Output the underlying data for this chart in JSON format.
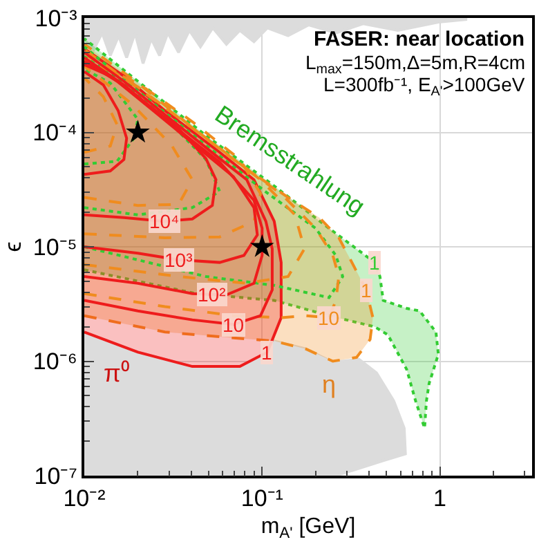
{
  "chart_data": {
    "type": "line",
    "title": "FASER: near location",
    "xlabel": "m$_{A'}$ [GeV]",
    "ylabel": "ϵ",
    "log": "xy",
    "grid": true,
    "xlim": [
      0.01,
      3.3
    ],
    "ylim": [
      1e-07,
      0.001
    ],
    "xticks": [
      {
        "value": 0.01,
        "label": "10⁻²"
      },
      {
        "value": 0.1,
        "label": "10⁻¹"
      },
      {
        "value": 1,
        "label": "1"
      },
      {
        "value": 0.02,
        "label": null
      },
      {
        "value": 0.03,
        "label": null
      },
      {
        "value": 0.04,
        "label": null
      },
      {
        "value": 0.05,
        "label": null
      },
      {
        "value": 0.06,
        "label": null
      },
      {
        "value": 0.07,
        "label": null
      },
      {
        "value": 0.08,
        "label": null
      },
      {
        "value": 0.09,
        "label": null
      },
      {
        "value": 0.2,
        "label": null
      },
      {
        "value": 0.3,
        "label": null
      },
      {
        "value": 0.4,
        "label": null
      },
      {
        "value": 0.5,
        "label": null
      },
      {
        "value": 0.6,
        "label": null
      },
      {
        "value": 0.7,
        "label": null
      },
      {
        "value": 0.8,
        "label": null
      },
      {
        "value": 0.9,
        "label": null
      },
      {
        "value": 2,
        "label": null
      },
      {
        "value": 3,
        "label": null
      }
    ],
    "yticks": [
      {
        "value": 1e-07,
        "label": "10⁻⁷"
      },
      {
        "value": 1e-06,
        "label": "10⁻⁶"
      },
      {
        "value": 1e-05,
        "label": "10⁻⁵"
      },
      {
        "value": 0.0001,
        "label": "10⁻⁴"
      },
      {
        "value": 0.001,
        "label": "10⁻³"
      },
      {
        "value": 2e-07,
        "label": null
      },
      {
        "value": 3e-07,
        "label": null
      },
      {
        "value": 4e-07,
        "label": null
      },
      {
        "value": 5e-07,
        "label": null
      },
      {
        "value": 6e-07,
        "label": null
      },
      {
        "value": 7e-07,
        "label": null
      },
      {
        "value": 8e-07,
        "label": null
      },
      {
        "value": 9e-07,
        "label": null
      },
      {
        "value": 2e-06,
        "label": null
      },
      {
        "value": 3e-06,
        "label": null
      },
      {
        "value": 4e-06,
        "label": null
      },
      {
        "value": 5e-06,
        "label": null
      },
      {
        "value": 6e-06,
        "label": null
      },
      {
        "value": 7e-06,
        "label": null
      },
      {
        "value": 8e-06,
        "label": null
      },
      {
        "value": 9e-06,
        "label": null
      },
      {
        "value": 2e-05,
        "label": null
      },
      {
        "value": 3e-05,
        "label": null
      },
      {
        "value": 4e-05,
        "label": null
      },
      {
        "value": 5e-05,
        "label": null
      },
      {
        "value": 6e-05,
        "label": null
      },
      {
        "value": 7e-05,
        "label": null
      },
      {
        "value": 8e-05,
        "label": null
      },
      {
        "value": 9e-05,
        "label": null
      },
      {
        "value": 0.0002,
        "label": null
      },
      {
        "value": 0.0003,
        "label": null
      },
      {
        "value": 0.0004,
        "label": null
      },
      {
        "value": 0.0005,
        "label": null
      },
      {
        "value": 0.0006,
        "label": null
      },
      {
        "value": 0.0007,
        "label": null
      },
      {
        "value": 0.0008,
        "label": null
      },
      {
        "value": 0.0009,
        "label": null
      }
    ],
    "series": [
      {
        "type": "area",
        "color": "#dcdcdc",
        "line_style": "solid",
        "x": [
          0.01,
          0.01,
          0.02,
          0.0405,
          0.075,
          0.109,
          0.117,
          0.176,
          0.25,
          0.35,
          0.44,
          0.55,
          0.63,
          0.64,
          0.48,
          0.26
        ],
        "values": [
          1e-07,
          1.8e-06,
          1.2e-06,
          9e-07,
          9e-07,
          1.2e-06,
          1.5e-06,
          1.28e-06,
          9.8e-07,
          1.04e-06,
          7.9e-07,
          4.5e-07,
          2.6e-07,
          1.55e-07,
          1.35e-07,
          1e-07
        ]
      },
      {
        "type": "area",
        "color": "#dcdcdc",
        "line_style": "solid",
        "x": [
          0.01,
          0.0113,
          0.0126,
          0.014,
          0.0156,
          0.0173,
          0.0193,
          0.0214,
          0.0238,
          0.0265,
          0.0295,
          0.0339,
          0.039,
          0.045,
          0.0528,
          0.063,
          0.075,
          0.09,
          0.107,
          0.14,
          0.183,
          0.26,
          0.37,
          0.58,
          0.98,
          1.4,
          1.4,
          0.01
        ],
        "values": [
          0.00066,
          0.00053,
          0.00074,
          0.00047,
          0.0007,
          0.00045,
          0.00074,
          0.0004,
          0.00066,
          0.00047,
          0.00074,
          0.0005,
          0.00078,
          0.00056,
          0.00082,
          0.00059,
          0.00078,
          0.00062,
          0.00082,
          0.0007,
          0.00087,
          0.00074,
          0.00089,
          0.00078,
          0.00092,
          0.00097,
          0.001,
          0.001
        ]
      },
      {
        "type": "area",
        "color": "#33cc33",
        "line_style": "dotted",
        "x": [
          0.01,
          0.0428,
          0.117,
          0.238,
          0.43,
          0.51,
          0.65,
          0.73,
          0.82,
          0.84,
          0.87,
          0.98,
          0.95,
          0.77,
          0.65,
          0.48,
          0.46,
          0.43,
          0.34,
          0.238,
          0.117,
          0.0483,
          0.02,
          0.01
        ],
        "values": [
          6.3e-06,
          3.9e-06,
          3.4e-06,
          2.5e-06,
          2e-06,
          1.7e-06,
          8.5e-07,
          4.5e-07,
          2.6e-07,
          4.5e-07,
          6.4e-07,
          1.15e-06,
          1.8e-06,
          2.75e-06,
          2.9e-06,
          3.4e-06,
          5.5e-06,
          7.3e-06,
          9.6e-06,
          1.45e-05,
          3.4e-05,
          9.4e-05,
          0.00028,
          0.00066
        ]
      },
      {
        "type": "area",
        "color": "#f08c1e",
        "line_style": "dashed",
        "x": [
          0.01,
          0.0284,
          0.069,
          0.117,
          0.176,
          0.25,
          0.34,
          0.405,
          0.42,
          0.385,
          0.32,
          0.27,
          0.21,
          0.14,
          0.082,
          0.0405,
          0.02,
          0.01
        ],
        "values": [
          2.5e-06,
          1.8e-06,
          1.6e-06,
          1.5e-06,
          1.28e-06,
          1e-06,
          1.08e-06,
          1.55e-06,
          2.4e-06,
          4.2e-06,
          7.3e-06,
          1.2e-05,
          1.8e-05,
          2.7e-05,
          4.8e-05,
          0.00011,
          0.00027,
          0.00059
        ]
      },
      {
        "type": "area",
        "color": "#ee1c1c",
        "line_style": "solid",
        "x": [
          0.01,
          0.02,
          0.0405,
          0.075,
          0.107,
          0.128,
          0.128,
          0.117,
          0.09,
          0.0577,
          0.0284,
          0.0167,
          0.01
        ],
        "values": [
          1.8e-06,
          1.2e-06,
          9e-07,
          9e-07,
          1.2e-06,
          2.4e-06,
          7.3e-06,
          1.67e-05,
          3.86e-05,
          6.7e-05,
          0.000155,
          0.00031,
          0.00054
        ]
      },
      {
        "color": "#33cc33",
        "line_style": "dotted",
        "x": [
          0.01,
          0.0483,
          0.117,
          0.238,
          0.284,
          0.26,
          0.2,
          0.104,
          0.0483,
          0.02,
          0.01
        ],
        "values": [
          1e-05,
          5.5e-06,
          4.6e-06,
          3.6e-06,
          5.5e-06,
          8.4e-06,
          1.45e-05,
          3.05e-05,
          7.7e-05,
          0.00023,
          0.00056
        ]
      },
      {
        "color": "#33cc33",
        "line_style": "dotted",
        "x": [
          0.01,
          0.02,
          0.0405,
          0.0577,
          0.0483,
          0.0284,
          0.0167,
          0.01
        ],
        "values": [
          2.2e-05,
          1.9e-05,
          2.2e-05,
          3.05e-05,
          5.8e-05,
          0.000135,
          0.00027,
          0.00046
        ]
      },
      {
        "color": "#33cc33",
        "line_style": "dotted",
        "x": [
          0.01,
          0.0153,
          0.019,
          0.02,
          0.014,
          0.01
        ],
        "values": [
          5.3e-05,
          5.6e-05,
          8.9e-05,
          0.00013,
          0.00027,
          0.000357
        ]
      },
      {
        "color": "#f08c1e",
        "line_style": "dashed",
        "x": [
          0.01,
          0.0284,
          0.069,
          0.128,
          0.176,
          0.238,
          0.26,
          0.27,
          0.25,
          0.2,
          0.128,
          0.069,
          0.0339,
          0.0183,
          0.01
        ],
        "values": [
          3.9e-06,
          3e-06,
          2.5e-06,
          2.4e-06,
          2.5e-06,
          2.4e-06,
          3.4e-06,
          5.5e-06,
          8.4e-06,
          1.45e-05,
          2.9e-05,
          5.8e-05,
          0.000135,
          0.00027,
          0.00053
        ]
      },
      {
        "color": "#f08c1e",
        "line_style": "dashed",
        "x": [
          0.01,
          0.0339,
          0.082,
          0.14,
          0.173,
          0.153,
          0.098,
          0.0483,
          0.02,
          0.01
        ],
        "values": [
          7e-06,
          5.5e-06,
          4.8e-06,
          5.5e-06,
          9.6e-06,
          1.9e-05,
          3.86e-05,
          8.9e-05,
          0.00025,
          0.000485
        ]
      },
      {
        "color": "#f08c1e",
        "line_style": "dashed",
        "x": [
          0.01,
          0.0284,
          0.0577,
          0.09,
          0.098,
          0.075,
          0.0405,
          0.02,
          0.01
        ],
        "values": [
          1.3e-05,
          1.2e-05,
          1.22e-05,
          1.67e-05,
          2.92e-05,
          5.8e-05,
          0.000124,
          0.00027,
          0.00043
        ]
      },
      {
        "color": "#f08c1e",
        "line_style": "dashed",
        "x": [
          0.01,
          0.02,
          0.0339,
          0.0405,
          0.031,
          0.0183,
          0.01
        ],
        "values": [
          2.7e-05,
          2.3e-05,
          2.35e-05,
          3.86e-05,
          7.7e-05,
          0.00018,
          0.00038
        ]
      },
      {
        "color": "#f08c1e",
        "line_style": "dashed",
        "x": [
          0.01,
          0.014,
          0.0153,
          0.0128,
          0.01
        ],
        "values": [
          6.7e-05,
          7.6e-05,
          0.000117,
          0.000205,
          0.0003
        ]
      },
      {
        "color": "#ee1c1c",
        "line_style": "solid",
        "x": [
          0.01,
          0.02,
          0.0405,
          0.069,
          0.098,
          0.114,
          0.114,
          0.105,
          0.082,
          0.0577,
          0.0284,
          0.0167,
          0.01
        ],
        "values": [
          3.4e-06,
          2.75e-06,
          2.3e-06,
          2.1e-06,
          2.5e-06,
          4.2e-06,
          9.6e-06,
          1.67e-05,
          3.86e-05,
          5.9e-05,
          0.000143,
          0.00028,
          0.0005
        ]
      },
      {
        "color": "#ee1c1c",
        "line_style": "solid",
        "x": [
          0.01,
          0.02,
          0.0405,
          0.063,
          0.09,
          0.1,
          0.1,
          0.09,
          0.0577,
          0.0284,
          0.0167,
          0.01
        ],
        "values": [
          5.5e-06,
          4.8e-06,
          3.9e-06,
          3.8e-06,
          4.8e-06,
          8.4e-06,
          1.45e-05,
          2.55e-05,
          5.5e-05,
          0.00013,
          0.00026,
          0.00045
        ]
      },
      {
        "color": "#ee1c1c",
        "line_style": "solid",
        "x": [
          0.01,
          0.02,
          0.0339,
          0.0577,
          0.079,
          0.094,
          0.09,
          0.069,
          0.0405,
          0.0238,
          0.0153,
          0.01
        ],
        "values": [
          1e-05,
          8.8e-06,
          7.7e-06,
          7.3e-06,
          8.4e-06,
          1.27e-05,
          2.2e-05,
          4.1e-05,
          8.1e-05,
          0.00016,
          0.00028,
          0.00042
        ]
      },
      {
        "color": "#ee1c1c",
        "line_style": "solid",
        "x": [
          0.01,
          0.0167,
          0.0284,
          0.0405,
          0.0525,
          0.055,
          0.0483,
          0.0339,
          0.02,
          0.014,
          0.01
        ],
        "values": [
          1.9e-05,
          1.8e-05,
          1.67e-05,
          1.75e-05,
          2.3e-05,
          3.86e-05,
          5.9e-05,
          0.000108,
          0.000205,
          0.00031,
          0.00039
        ]
      },
      {
        "color": "#ee1c1c",
        "line_style": "solid",
        "x": [
          0.01,
          0.014,
          0.0167,
          0.0173,
          0.0155,
          0.0128,
          0.01
        ],
        "values": [
          4.3e-05,
          4.6e-05,
          5.8e-05,
          8.9e-05,
          0.000155,
          0.00026,
          0.00034
        ]
      },
      {
        "type": "scatter",
        "color": "#000000",
        "marker": "star",
        "x": [
          0.02,
          0.1
        ],
        "values": [
          0.0001,
          1e-05
        ]
      }
    ],
    "annotations": [
      "L$_{max}$=150m,Δ=5m,R=4cm",
      "L=300fb⁻¹, E$_{A'}$>100GeV",
      "Bremsstrahlung",
      "π⁰",
      "η",
      {
        "text": "1",
        "x": 0.43,
        "y": 7.3e-06
      },
      {
        "text": "10⁴",
        "x": 0.028,
        "y": 1.67e-05
      },
      {
        "text": "10³",
        "x": 0.0339,
        "y": 7.7e-06
      },
      {
        "text": "10²",
        "x": 0.052,
        "y": 3.84e-06
      },
      {
        "text": "10",
        "x": 0.069,
        "y": 2.1e-06
      },
      {
        "text": "1",
        "x": 0.107,
        "y": 1.2e-06
      },
      {
        "text": "10",
        "x": 0.238,
        "y": 2.4e-06
      },
      {
        "text": "1",
        "x": 0.385,
        "y": 4.2e-06
      }
    ]
  }
}
